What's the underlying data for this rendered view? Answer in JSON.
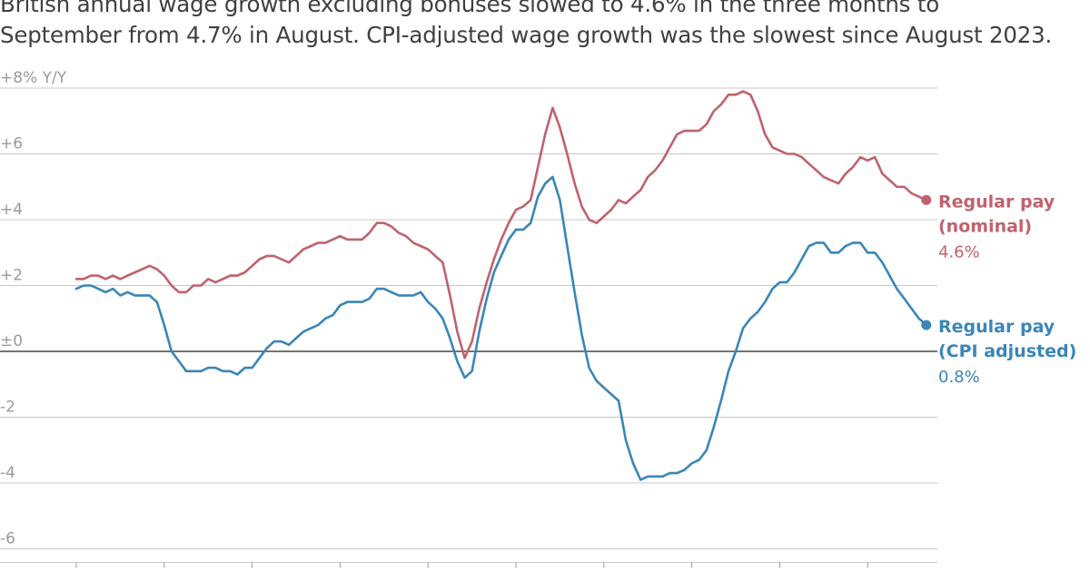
{
  "subtitle": {
    "line1": "British annual wage growth excluding bonuses slowed to 4.6% in the three months to",
    "line2": "September from 4.7% in August. CPI-adjusted wage growth was the slowest since August 2023."
  },
  "colors": {
    "nominal": "#c0626e",
    "real": "#3a86b8",
    "grid": "#c8c8c8",
    "zero": "#222222",
    "tick": "#9a9a9a"
  },
  "chart_data": {
    "type": "line",
    "ylabel": "Y/Y",
    "ylim": [
      -6.5,
      8
    ],
    "yticks": [
      {
        "value": 8,
        "label": "+8% Y/Y"
      },
      {
        "value": 6,
        "label": "+6"
      },
      {
        "value": 4,
        "label": "+4"
      },
      {
        "value": 2,
        "label": "+2"
      },
      {
        "value": 0,
        "label": "±0"
      },
      {
        "value": -2,
        "label": "-2"
      },
      {
        "value": -4,
        "label": "-4"
      },
      {
        "value": -6,
        "label": "-6"
      }
    ],
    "xlim": [
      2015.3,
      2026.3
    ],
    "xticks": [
      2016,
      2017,
      2018,
      2019,
      2020,
      2021,
      2022,
      2023,
      2024,
      2025
    ],
    "series": [
      {
        "name": "Regular pay (nominal)",
        "label_line1": "Regular pay",
        "label_line2": "(nominal)",
        "last_value_label": "4.6%",
        "color": "#c0626e",
        "x": [
          2016.0,
          2016.083,
          2016.167,
          2016.25,
          2016.333,
          2016.417,
          2016.5,
          2016.583,
          2016.667,
          2016.75,
          2016.833,
          2016.917,
          2017.0,
          2017.083,
          2017.167,
          2017.25,
          2017.333,
          2017.417,
          2017.5,
          2017.583,
          2017.667,
          2017.75,
          2017.833,
          2017.917,
          2018.0,
          2018.083,
          2018.167,
          2018.25,
          2018.333,
          2018.417,
          2018.5,
          2018.583,
          2018.667,
          2018.75,
          2018.833,
          2018.917,
          2019.0,
          2019.083,
          2019.167,
          2019.25,
          2019.333,
          2019.417,
          2019.5,
          2019.583,
          2019.667,
          2019.75,
          2019.833,
          2019.917,
          2020.0,
          2020.083,
          2020.167,
          2020.25,
          2020.333,
          2020.417,
          2020.5,
          2020.583,
          2020.667,
          2020.75,
          2020.833,
          2020.917,
          2021.0,
          2021.083,
          2021.167,
          2021.25,
          2021.333,
          2021.417,
          2021.5,
          2021.583,
          2021.667,
          2021.75,
          2021.833,
          2021.917,
          2022.0,
          2022.083,
          2022.167,
          2022.25,
          2022.333,
          2022.417,
          2022.5,
          2022.583,
          2022.667,
          2022.75,
          2022.833,
          2022.917,
          2023.0,
          2023.083,
          2023.167,
          2023.25,
          2023.333,
          2023.417,
          2023.5,
          2023.583,
          2023.667,
          2023.75,
          2023.833,
          2023.917,
          2024.0,
          2024.083,
          2024.167,
          2024.25,
          2024.333,
          2024.417,
          2024.5,
          2024.583,
          2024.667,
          2024.75,
          2024.833,
          2024.917,
          2025.0,
          2025.083,
          2025.167,
          2025.25,
          2025.333,
          2025.417,
          2025.5,
          2025.583,
          2025.667
        ],
        "values": [
          2.2,
          2.2,
          2.3,
          2.3,
          2.2,
          2.3,
          2.2,
          2.3,
          2.4,
          2.5,
          2.6,
          2.5,
          2.3,
          2.0,
          1.8,
          1.8,
          2.0,
          2.0,
          2.2,
          2.1,
          2.2,
          2.3,
          2.3,
          2.4,
          2.6,
          2.8,
          2.9,
          2.9,
          2.8,
          2.7,
          2.9,
          3.1,
          3.2,
          3.3,
          3.3,
          3.4,
          3.5,
          3.4,
          3.4,
          3.4,
          3.6,
          3.9,
          3.9,
          3.8,
          3.6,
          3.5,
          3.3,
          3.2,
          3.1,
          2.9,
          2.7,
          1.7,
          0.6,
          -0.2,
          0.3,
          1.3,
          2.1,
          2.8,
          3.4,
          3.9,
          4.3,
          4.4,
          4.6,
          5.6,
          6.6,
          7.4,
          6.8,
          6.0,
          5.1,
          4.4,
          4.0,
          3.9,
          4.1,
          4.3,
          4.6,
          4.5,
          4.7,
          4.9,
          5.3,
          5.5,
          5.8,
          6.2,
          6.6,
          6.7,
          6.7,
          6.7,
          6.9,
          7.3,
          7.5,
          7.8,
          7.8,
          7.9,
          7.8,
          7.3,
          6.6,
          6.2,
          6.1,
          6.0,
          6.0,
          5.9,
          5.7,
          5.5,
          5.3,
          5.2,
          5.1,
          5.4,
          5.6,
          5.9,
          5.8,
          5.9,
          5.4,
          5.2,
          5.0,
          5.0,
          4.8,
          4.7,
          4.6
        ]
      },
      {
        "name": "Regular pay (CPI adjusted)",
        "label_line1": "Regular pay",
        "label_line2": "(CPI adjusted)",
        "last_value_label": "0.8%",
        "color": "#3a86b8",
        "x": [
          2016.0,
          2016.083,
          2016.167,
          2016.25,
          2016.333,
          2016.417,
          2016.5,
          2016.583,
          2016.667,
          2016.75,
          2016.833,
          2016.917,
          2017.0,
          2017.083,
          2017.167,
          2017.25,
          2017.333,
          2017.417,
          2017.5,
          2017.583,
          2017.667,
          2017.75,
          2017.833,
          2017.917,
          2018.0,
          2018.083,
          2018.167,
          2018.25,
          2018.333,
          2018.417,
          2018.5,
          2018.583,
          2018.667,
          2018.75,
          2018.833,
          2018.917,
          2019.0,
          2019.083,
          2019.167,
          2019.25,
          2019.333,
          2019.417,
          2019.5,
          2019.583,
          2019.667,
          2019.75,
          2019.833,
          2019.917,
          2020.0,
          2020.083,
          2020.167,
          2020.25,
          2020.333,
          2020.417,
          2020.5,
          2020.583,
          2020.667,
          2020.75,
          2020.833,
          2020.917,
          2021.0,
          2021.083,
          2021.167,
          2021.25,
          2021.333,
          2021.417,
          2021.5,
          2021.583,
          2021.667,
          2021.75,
          2021.833,
          2021.917,
          2022.0,
          2022.083,
          2022.167,
          2022.25,
          2022.333,
          2022.417,
          2022.5,
          2022.583,
          2022.667,
          2022.75,
          2022.833,
          2022.917,
          2023.0,
          2023.083,
          2023.167,
          2023.25,
          2023.333,
          2023.417,
          2023.5,
          2023.583,
          2023.667,
          2023.75,
          2023.833,
          2023.917,
          2024.0,
          2024.083,
          2024.167,
          2024.25,
          2024.333,
          2024.417,
          2024.5,
          2024.583,
          2024.667,
          2024.75,
          2024.833,
          2024.917,
          2025.0,
          2025.083,
          2025.167,
          2025.25,
          2025.333,
          2025.417,
          2025.5,
          2025.583,
          2025.667
        ],
        "values": [
          1.9,
          2.0,
          2.0,
          1.9,
          1.8,
          1.9,
          1.7,
          1.8,
          1.7,
          1.7,
          1.7,
          1.5,
          0.8,
          0.0,
          -0.3,
          -0.6,
          -0.6,
          -0.6,
          -0.5,
          -0.5,
          -0.6,
          -0.6,
          -0.7,
          -0.5,
          -0.5,
          -0.2,
          0.1,
          0.3,
          0.3,
          0.2,
          0.4,
          0.6,
          0.7,
          0.8,
          1.0,
          1.1,
          1.4,
          1.5,
          1.5,
          1.5,
          1.6,
          1.9,
          1.9,
          1.8,
          1.7,
          1.7,
          1.7,
          1.8,
          1.5,
          1.3,
          1.0,
          0.4,
          -0.3,
          -0.8,
          -0.6,
          0.6,
          1.6,
          2.4,
          2.9,
          3.4,
          3.7,
          3.7,
          3.9,
          4.7,
          5.1,
          5.3,
          4.6,
          3.2,
          1.8,
          0.5,
          -0.5,
          -0.9,
          -1.1,
          -1.3,
          -1.5,
          -2.7,
          -3.4,
          -3.9,
          -3.8,
          -3.8,
          -3.8,
          -3.7,
          -3.7,
          -3.6,
          -3.4,
          -3.3,
          -3.0,
          -2.3,
          -1.5,
          -0.6,
          0.0,
          0.7,
          1.0,
          1.2,
          1.5,
          1.9,
          2.1,
          2.1,
          2.4,
          2.8,
          3.2,
          3.3,
          3.3,
          3.0,
          3.0,
          3.2,
          3.3,
          3.3,
          3.0,
          3.0,
          2.7,
          2.3,
          1.9,
          1.6,
          1.3,
          1.0,
          0.8
        ]
      }
    ]
  }
}
